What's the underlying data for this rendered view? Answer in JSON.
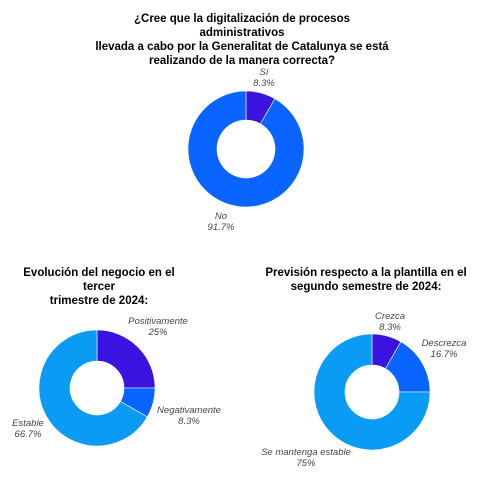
{
  "chart_data": [
    {
      "type": "pie",
      "title": "¿Cree que la digitalización de procesos administrativos llevada a cabo por la Generalitat de Catalunya se está realizando de la manera correcta?",
      "title_lines": [
        "¿Cree que la digitalización de procesos administrativos",
        "llevada a cabo por la Generalitat de Catalunya se está",
        "realizando de la manera correcta?"
      ],
      "donut": true,
      "slices": [
        {
          "label": "Sí",
          "value": 8.3,
          "display": "8.3%",
          "color": "#3b13e0"
        },
        {
          "label": "No",
          "value": 91.7,
          "display": "91.7%",
          "color": "#0a64ff"
        }
      ]
    },
    {
      "type": "pie",
      "title": "Evolución del negocio en el tercer trimestre de 2024:",
      "title_lines": [
        "Evolución del negocio en el tercer",
        "trimestre de 2024:"
      ],
      "donut": true,
      "slices": [
        {
          "label": "Positivamente",
          "value": 25,
          "display": "25%",
          "color": "#3b13e0"
        },
        {
          "label": "Negativamente",
          "value": 8.3,
          "display": "8.3%",
          "color": "#0a64ff"
        },
        {
          "label": "Estable",
          "value": 66.7,
          "display": "66.7%",
          "color": "#0a9cf5"
        }
      ]
    },
    {
      "type": "pie",
      "title": "Previsión respecto a la plantilla en el segundo semestre de 2024:",
      "title_lines": [
        "Previsión respecto a la plantilla en el",
        "segundo semestre de 2024:"
      ],
      "donut": true,
      "slices": [
        {
          "label": "Crezca",
          "value": 8.3,
          "display": "8.3%",
          "color": "#3b13e0"
        },
        {
          "label": "Descrezca",
          "value": 16.7,
          "display": "16.7%",
          "color": "#0a64ff"
        },
        {
          "label": "Se mantenga estable",
          "value": 75,
          "display": "75%",
          "color": "#0a9cf5"
        }
      ]
    }
  ]
}
